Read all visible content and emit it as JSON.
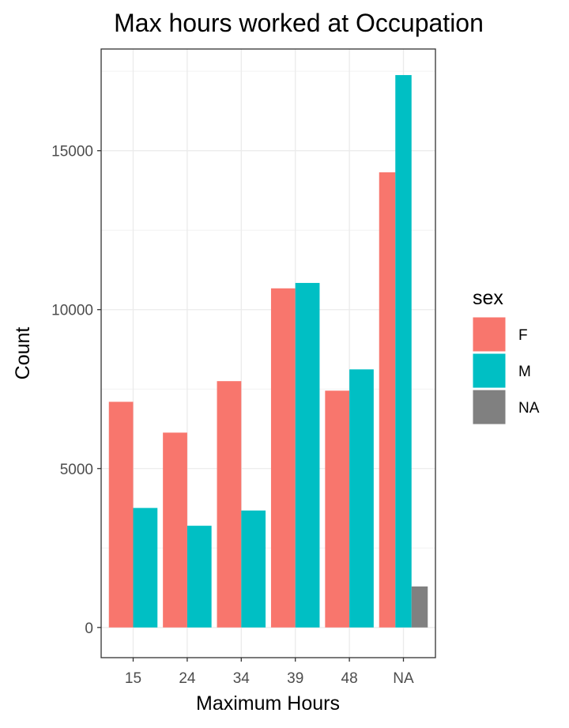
{
  "chart_data": {
    "type": "bar",
    "title": "Max hours worked at Occupation",
    "xlabel": "Maximum Hours",
    "ylabel": "Count",
    "categories": [
      "15",
      "24",
      "34",
      "39",
      "48",
      "NA"
    ],
    "series": [
      {
        "name": "F",
        "color": "#F8766D",
        "values": [
          7100,
          6130,
          7750,
          10670,
          7450,
          14320
        ]
      },
      {
        "name": "M",
        "color": "#00BFC4",
        "values": [
          3760,
          3200,
          3680,
          10840,
          8120,
          17380
        ]
      },
      {
        "name": "NA",
        "color": "#808080",
        "values": [
          null,
          null,
          null,
          null,
          null,
          1290
        ]
      }
    ],
    "yticks": [
      0,
      5000,
      10000,
      15000
    ],
    "ylim": [
      -950,
      18200
    ],
    "legend_title": "sex",
    "legend_position": "right",
    "grid": true,
    "theme": "bw"
  }
}
